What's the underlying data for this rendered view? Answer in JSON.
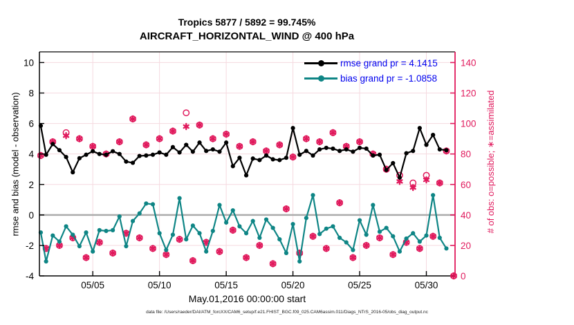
{
  "title": {
    "line1": "Tropics 5877 / 5892 = 99.745%",
    "line2": "AIRCRAFT_HORIZONTAL_WIND @ 400 hPa"
  },
  "axes": {
    "ylabel_left": "rmse and bias (model - observation)",
    "ylabel_right": "# of obs: o=possible; ∗=assimilated",
    "xlabel": "May.01,2016 00:00:00 start"
  },
  "legend": {
    "items": [
      {
        "label": "rmse grand pr = 4.1415",
        "series": "rmse"
      },
      {
        "label": "bias grand pr = -1.0858",
        "series": "bias"
      }
    ]
  },
  "footer": "data file: /Users/raeder/DAI/ATM_forcXX/CAM6_setup/f.e21.FHIST_BGC.f09_025.CAM6assim.011/Diags_NTrS_2016-05/obs_diag_output.nc",
  "colors": {
    "rmse": "#000000",
    "bias": "#0E8585",
    "obs": "#E0195C",
    "legend_text": "#0000EE",
    "grid": "#F5D9DF",
    "zero_line": "#ABABAB",
    "axis": "#000000"
  },
  "chart_data": {
    "type": "line",
    "title": "Tropics 5877 / 5892 = 99.745%  AIRCRAFT_HORIZONTAL_WIND @ 400 hPa",
    "xlabel": "May.01,2016 00:00:00 start",
    "ylabel_left": "rmse and bias (model - observation)",
    "ylabel_right": "# of obs: o=possible; ∗=assimilated",
    "xlim": [
      1.0,
      32.15
    ],
    "ylim_left": [
      -4,
      10.7
    ],
    "ylim_right": [
      0,
      147
    ],
    "grid": true,
    "legend_position": "top-right-inside",
    "xticks": [
      {
        "value": 5,
        "label": "05/05"
      },
      {
        "value": 10,
        "label": "05/10"
      },
      {
        "value": 15,
        "label": "05/15"
      },
      {
        "value": 20,
        "label": "05/20"
      },
      {
        "value": 25,
        "label": "05/25"
      },
      {
        "value": 30,
        "label": "05/30"
      }
    ],
    "yticks_left": [
      -4,
      -2,
      0,
      2,
      4,
      6,
      8,
      10
    ],
    "yticks_right": [
      0,
      20,
      40,
      60,
      80,
      100,
      120,
      140
    ],
    "x_days_may_2016": [
      1.1,
      1.5,
      2,
      2.5,
      3,
      3.5,
      4,
      4.5,
      5,
      5.5,
      6,
      6.5,
      7,
      7.5,
      8,
      8.5,
      9,
      9.5,
      10,
      10.5,
      11,
      11.5,
      12,
      12.5,
      13,
      13.5,
      14,
      14.5,
      15,
      15.5,
      16,
      16.5,
      17,
      17.5,
      18,
      18.5,
      19,
      19.5,
      20,
      20.5,
      21,
      21.5,
      22,
      22.5,
      23,
      23.5,
      24,
      24.5,
      25,
      25.5,
      26,
      26.5,
      27,
      27.5,
      28,
      28.5,
      29,
      29.5,
      30,
      30.5,
      31,
      31.5
    ],
    "series": [
      {
        "name": "rmse grand pr = 4.1415",
        "axis": "left",
        "values": [
          5.85,
          3.95,
          4.65,
          4.25,
          3.8,
          2.8,
          3.72,
          3.95,
          4.18,
          4.0,
          3.95,
          4.18,
          4.0,
          3.5,
          3.42,
          3.87,
          3.9,
          3.95,
          4.1,
          3.95,
          4.45,
          4.1,
          4.6,
          4.15,
          4.75,
          4.2,
          4.3,
          4.15,
          4.75,
          3.2,
          3.75,
          2.6,
          3.7,
          3.6,
          3.9,
          3.65,
          3.6,
          3.75,
          5.7,
          3.95,
          4.2,
          3.9,
          4.3,
          4.4,
          4.35,
          4.2,
          4.3,
          4.15,
          4.4,
          4.35,
          3.9,
          3.95,
          2.95,
          3.4,
          2.45,
          4.05,
          4.2,
          5.7,
          4.6,
          5.25,
          4.3,
          4.25
        ]
      },
      {
        "name": "bias grand pr = -1.0858",
        "axis": "left",
        "values": [
          -1.15,
          -3.05,
          -1.35,
          -1.75,
          -0.75,
          -1.3,
          -2.05,
          -1.15,
          -2.4,
          -1.0,
          -1.05,
          -1.0,
          -0.1,
          -2.05,
          -0.4,
          0.1,
          0.75,
          0.7,
          -1.2,
          -2.3,
          -1.3,
          1.1,
          -1.6,
          -0.7,
          -1.2,
          -2.4,
          -1.05,
          0.65,
          -0.5,
          0.3,
          -0.75,
          -1.2,
          -0.4,
          -1.5,
          -0.3,
          -0.85,
          -1.6,
          -2.5,
          -0.6,
          -3.05,
          -0.2,
          1.3,
          -1.25,
          -0.9,
          -0.75,
          -1.5,
          -1.8,
          -2.3,
          -0.35,
          -1.3,
          0.65,
          -1.1,
          -0.85,
          -1.4,
          -2.4,
          -1.55,
          -1.2,
          -1.75,
          -1.35,
          1.3,
          -1.5,
          -2.2
        ]
      }
    ],
    "scatter": {
      "x_days_may_2016": [
        1.1,
        1.5,
        2,
        2.5,
        3,
        3.5,
        4,
        4.5,
        5,
        5.5,
        6,
        6.5,
        7,
        7.5,
        8,
        8.5,
        9,
        9.5,
        10,
        10.5,
        11,
        11.5,
        12,
        12.5,
        13,
        13.5,
        14,
        14.5,
        15,
        15.5,
        16,
        16.5,
        17,
        17.5,
        18,
        18.5,
        19,
        19.5,
        20,
        20.5,
        21,
        21.5,
        22,
        22.5,
        23,
        23.5,
        24,
        24.5,
        25,
        25.5,
        26,
        26.5,
        27,
        27.5,
        28,
        28.5,
        29,
        29.5,
        30,
        30.5,
        31,
        31.5,
        32.05
      ],
      "n_assimilated": [
        79,
        18,
        88,
        20,
        92,
        25,
        90,
        12,
        85,
        22,
        80,
        15,
        88,
        28,
        103,
        25,
        86,
        18,
        90,
        14,
        95,
        24,
        98,
        10,
        99,
        22,
        90,
        16,
        93,
        30,
        85,
        12,
        88,
        20,
        82,
        8,
        86,
        44,
        78,
        15,
        90,
        26,
        88,
        18,
        94,
        48,
        85,
        12,
        88,
        20,
        80,
        25,
        70,
        14,
        62,
        22,
        58,
        18,
        63,
        26,
        61,
        82,
        0
      ],
      "n_possible": [
        79,
        18,
        88,
        20,
        94,
        25,
        90,
        12,
        85,
        22,
        80,
        15,
        88,
        28,
        103,
        25,
        86,
        18,
        90,
        14,
        95,
        24,
        107,
        10,
        99,
        22,
        90,
        16,
        93,
        30,
        85,
        12,
        88,
        20,
        82,
        8,
        86,
        44,
        78,
        15,
        90,
        26,
        88,
        18,
        94,
        48,
        85,
        12,
        88,
        20,
        80,
        25,
        70,
        14,
        66,
        22,
        61,
        18,
        66,
        26,
        61,
        82,
        0
      ]
    }
  }
}
